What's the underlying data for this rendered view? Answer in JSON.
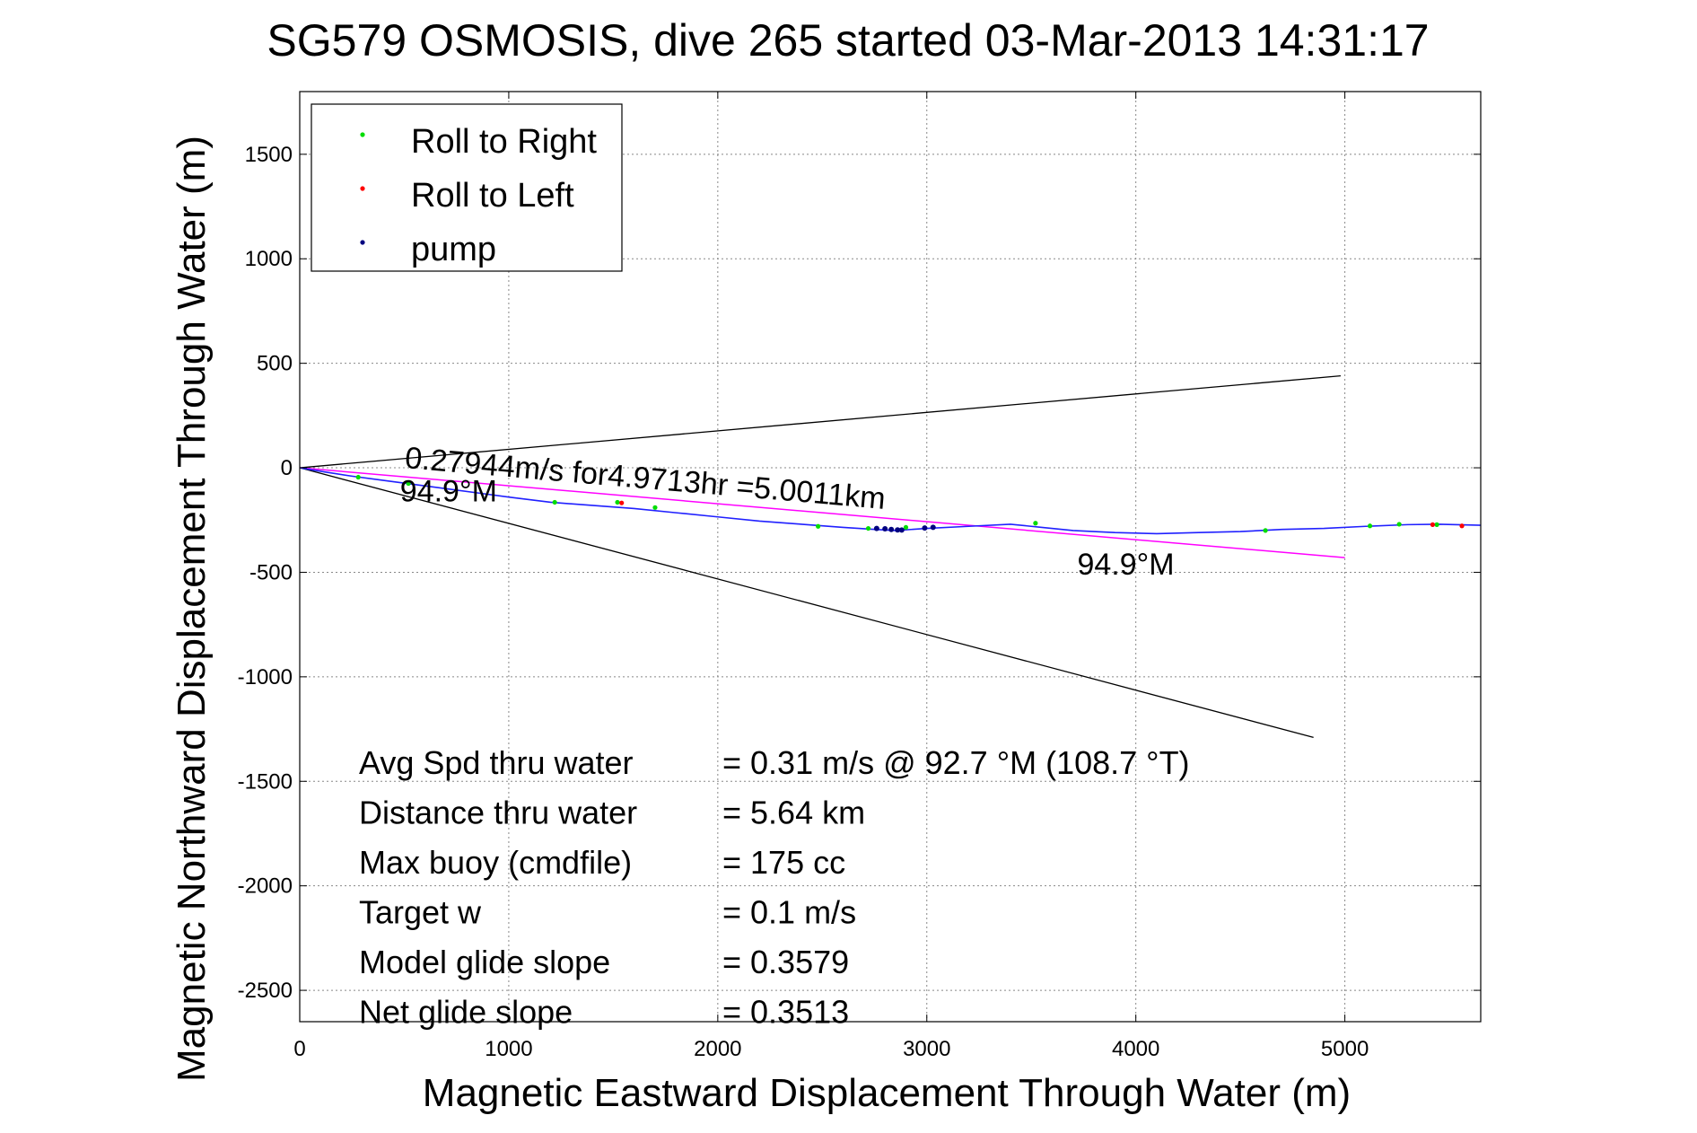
{
  "chart_data": {
    "type": "line",
    "title": "SG579 OSMOSIS, dive 265 started 03-Mar-2013 14:31:17",
    "xlabel": "Magnetic Eastward Displacement Through Water (m)",
    "ylabel": "Magnetic Northward Displacement Through Water (m)",
    "xlim": [
      0,
      5650
    ],
    "ylim": [
      -2650,
      1800
    ],
    "xticks": [
      0,
      1000,
      2000,
      3000,
      4000,
      5000
    ],
    "yticks": [
      1500,
      1000,
      500,
      0,
      -500,
      -1000,
      -1500,
      -2000,
      -2500
    ],
    "grid": true,
    "legend_position": "top-left",
    "legend": [
      {
        "label": "Roll to Right",
        "color": "#00dd00"
      },
      {
        "label": "Roll to Left",
        "color": "#ff0000"
      },
      {
        "label": "pump",
        "color": "#000080"
      }
    ],
    "track": {
      "color": "#2020ff",
      "x": [
        0,
        120,
        250,
        400,
        550,
        700,
        850,
        1000,
        1200,
        1400,
        1600,
        1800,
        2000,
        2200,
        2400,
        2600,
        2750,
        2850,
        3000,
        3200,
        3400,
        3550,
        3700,
        3900,
        4100,
        4300,
        4500,
        4700,
        4900,
        5100,
        5300,
        5450,
        5650
      ],
      "y": [
        0,
        -20,
        -40,
        -60,
        -80,
        -100,
        -120,
        -140,
        -165,
        -180,
        -195,
        -215,
        -235,
        -255,
        -270,
        -285,
        -295,
        -300,
        -290,
        -280,
        -270,
        -285,
        -300,
        -310,
        -315,
        -310,
        -305,
        -295,
        -290,
        -280,
        -272,
        -270,
        -275
      ]
    },
    "roll_right_points": {
      "x": [
        280,
        520,
        1220,
        1520,
        1700,
        2480,
        2720,
        2900,
        3520,
        4620,
        5120,
        5260,
        5440
      ],
      "y": [
        -45,
        -75,
        -165,
        -165,
        -190,
        -280,
        -290,
        -285,
        -265,
        -300,
        -278,
        -270,
        -272
      ]
    },
    "roll_left_points": {
      "x": [
        1540,
        5420,
        5560
      ],
      "y": [
        -168,
        -272,
        -278
      ]
    },
    "pump_points": {
      "x": [
        2760,
        2800,
        2830,
        2860,
        2880,
        2990,
        3030
      ],
      "y": [
        -290,
        -292,
        -295,
        -297,
        -298,
        -288,
        -285
      ]
    },
    "mean_velocity_line": {
      "color": "#ff00ff",
      "x": [
        0,
        5000
      ],
      "y": [
        0,
        -430
      ]
    },
    "heading_lines": {
      "color": "#000000",
      "upper": {
        "x": [
          0,
          4980
        ],
        "y": [
          0,
          440
        ]
      },
      "lower": {
        "x": [
          0,
          4850
        ],
        "y": [
          0,
          -1290
        ]
      }
    },
    "annotations": [
      {
        "text": "0.27944m/s for4.9713hr =5.0011km",
        "x": 500,
        "y": 0,
        "rotation": 4.9
      },
      {
        "text": "94.9°M",
        "x": 480,
        "y": -160
      },
      {
        "text": "94.9°M",
        "x": 3720,
        "y": -510
      }
    ],
    "stats": [
      {
        "label": "Avg Spd thru water",
        "value": "=  0.31 m/s @  92.7 °M (108.7 °T)"
      },
      {
        "label": "Distance thru water",
        "value": "=  5.64 km"
      },
      {
        "label": "Max buoy (cmdfile)",
        "value": "= 175 cc"
      },
      {
        "label": "Target w",
        "value": "= 0.1 m/s"
      },
      {
        "label": "Model glide slope",
        "value": "= 0.3579"
      },
      {
        "label": "Net glide slope",
        "value": "= 0.3513"
      }
    ]
  }
}
